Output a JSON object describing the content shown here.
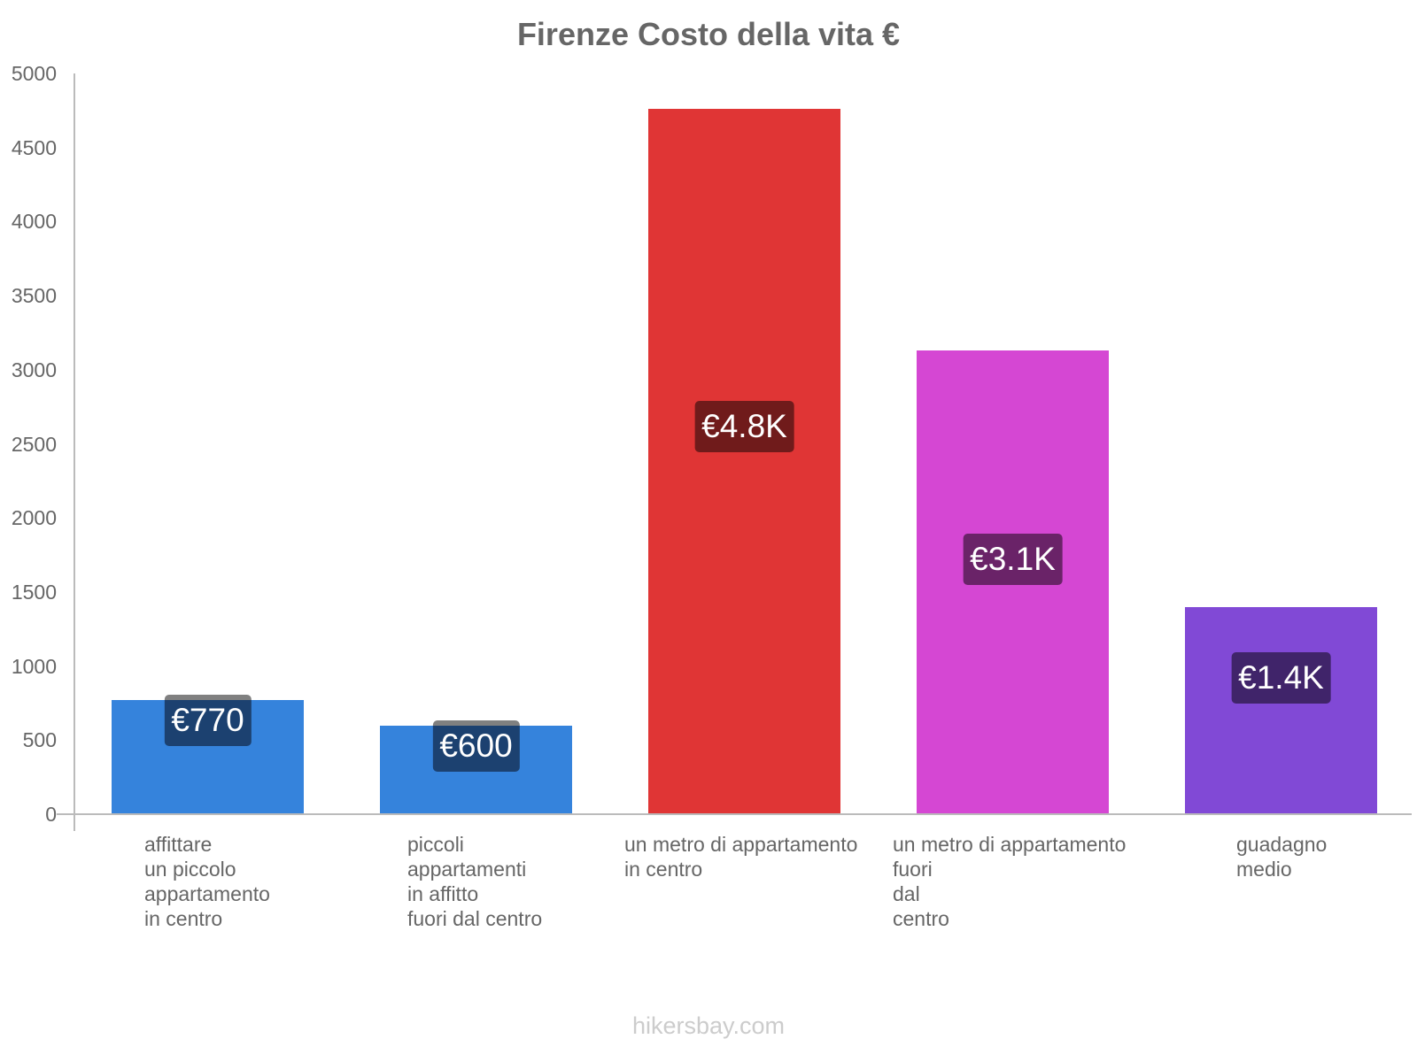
{
  "title": "Firenze Costo della vita €",
  "footer": "hikersbay.com",
  "y_ticks": [
    "5000",
    "4500",
    "4000",
    "3500",
    "3000",
    "2500",
    "2000",
    "1500",
    "1000",
    "500",
    "0"
  ],
  "bars": [
    {
      "label_lines": "affittare\nun piccolo\nappartamento\nin centro",
      "value_label": "€770",
      "value": 770,
      "color": "#3583dc",
      "label_bg": "#1c4170"
    },
    {
      "label_lines": "piccoli\nappartamenti\nin affitto\nfuori dal centro",
      "value_label": "€600",
      "value": 600,
      "color": "#3583dc",
      "label_bg": "#1c4170"
    },
    {
      "label_lines": "un metro di appartamento\nin centro",
      "value_label": "€4.8K",
      "value": 4760,
      "color": "#e03535",
      "label_bg": "#701b1b"
    },
    {
      "label_lines": "un metro di appartamento\nfuori\ndal\ncentro",
      "value_label": "€3.1K",
      "value": 3130,
      "color": "#d547d3",
      "label_bg": "#6a2368"
    },
    {
      "label_lines": "guadagno\nmedio",
      "value_label": "€1.4K",
      "value": 1400,
      "color": "#8149d6",
      "label_bg": "#40246a"
    }
  ],
  "chart_data": {
    "type": "bar",
    "title": "Firenze Costo della vita €",
    "categories": [
      "affittare un piccolo appartamento in centro",
      "piccoli appartamenti in affitto fuori dal centro",
      "un metro di appartamento in centro",
      "un metro di appartamento fuori dal centro",
      "guadagno medio"
    ],
    "values": [
      770,
      600,
      4760,
      3130,
      1400
    ],
    "value_labels": [
      "€770",
      "€600",
      "€4.8K",
      "€3.1K",
      "€1.4K"
    ],
    "xlabel": "",
    "ylabel": "",
    "ylim": [
      0,
      5000
    ],
    "yticks": [
      0,
      500,
      1000,
      1500,
      2000,
      2500,
      3000,
      3500,
      4000,
      4500,
      5000
    ],
    "grid": false,
    "legend": "none",
    "colors": [
      "#3583dc",
      "#3583dc",
      "#e03535",
      "#d547d3",
      "#8149d6"
    ]
  }
}
